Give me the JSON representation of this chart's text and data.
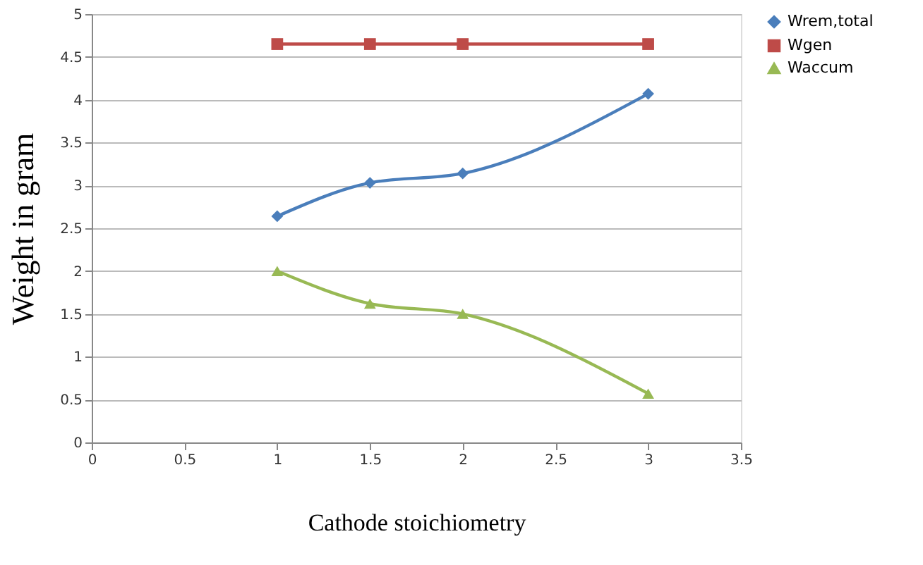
{
  "chart_data": {
    "type": "line",
    "xlabel": "Cathode stoichiometry",
    "ylabel": "Weight in gram",
    "x": [
      1,
      1.5,
      2,
      3
    ],
    "series": [
      {
        "name": "Wrem,total",
        "color": "#4a7ebb",
        "marker": "diamond",
        "values": [
          2.64,
          3.03,
          3.14,
          4.07
        ]
      },
      {
        "name": "Wgen",
        "color": "#be4b48",
        "marker": "square",
        "values": [
          4.65,
          4.65,
          4.65,
          4.65
        ]
      },
      {
        "name": "Waccum",
        "color": "#98b954",
        "marker": "triangle",
        "values": [
          2.0,
          1.62,
          1.5,
          0.57
        ]
      }
    ],
    "xlim": [
      0,
      3.5
    ],
    "xticks": [
      0,
      0.5,
      1,
      1.5,
      2,
      2.5,
      3,
      3.5
    ],
    "ylim": [
      0,
      5
    ],
    "yticks": [
      0,
      0.5,
      1,
      1.5,
      2,
      2.5,
      3,
      3.5,
      4,
      4.5,
      5
    ],
    "grid": "y",
    "legend": "right",
    "line_style": "solid"
  }
}
